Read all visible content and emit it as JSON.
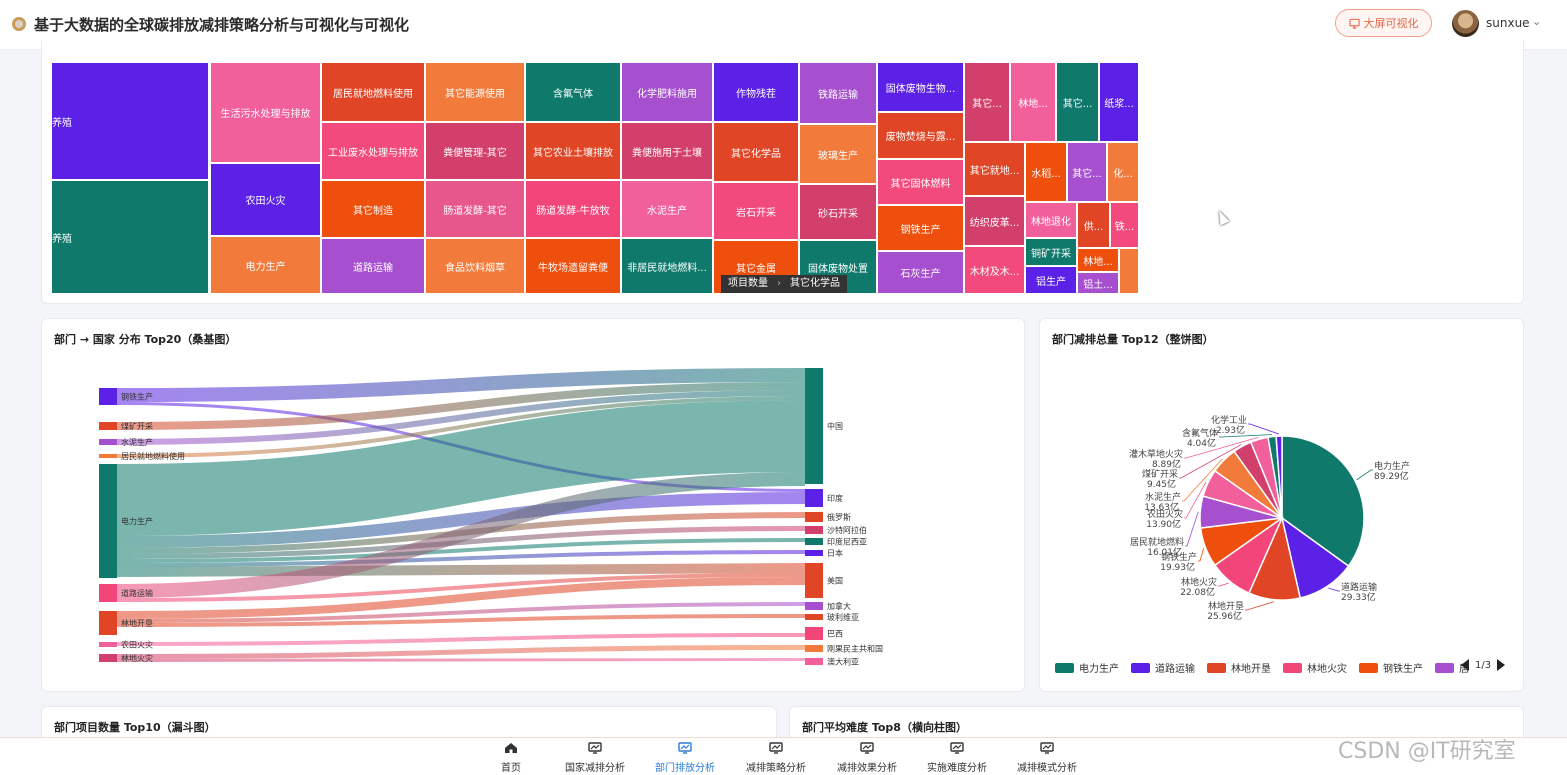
{
  "header": {
    "title": "基于大数据的全球碳排放减排策略分析与可视化与可视化",
    "screen_button": "大屏可视化",
    "username": "sunxue",
    "caret": "⌄"
  },
  "colors": {
    "teal": "#0f7a6c",
    "purple": "#5b21e6",
    "pink": "#f2609c",
    "orange": "#f27b3b",
    "red": "#e04626",
    "magenta": "#d23f6b",
    "violet": "#a64fcf",
    "accent_blue": "#2b7bd6"
  },
  "treemap": {
    "cells": [
      {
        "label": "养殖",
        "color": "#5b21e6"
      },
      {
        "label": "养殖",
        "color": "#0f7a6c"
      },
      {
        "label": "生活污水处理与排放",
        "color": "#f2609c"
      },
      {
        "label": "农田火灾",
        "color": "#5b21e6"
      },
      {
        "label": "电力生产",
        "color": "#f27b3b"
      },
      {
        "label": "居民就地燃料使用",
        "color": "#e04626"
      },
      {
        "label": "工业废水处理与排放",
        "color": "#f24a7c"
      },
      {
        "label": "其它制造",
        "color": "#ee4f0c"
      },
      {
        "label": "道路运输",
        "color": "#a64fcf"
      },
      {
        "label": "其它能源使用",
        "color": "#f27b3b"
      },
      {
        "label": "粪便管理-其它",
        "color": "#d23f6b"
      },
      {
        "label": "肠道发酵-其它",
        "color": "#e7578c"
      },
      {
        "label": "食品饮料烟草",
        "color": "#f27b3b"
      },
      {
        "label": "含氟气体",
        "color": "#0f7a6c"
      },
      {
        "label": "其它农业土壤排放",
        "color": "#e04626"
      },
      {
        "label": "肠道发酵-牛放牧",
        "color": "#f2467a"
      },
      {
        "label": "牛牧场遗留粪便",
        "color": "#ee4f0c"
      },
      {
        "label": "化学肥料施用",
        "color": "#a64fcf"
      },
      {
        "label": "粪便施用于土壤",
        "color": "#d23f6b"
      },
      {
        "label": "水泥生产",
        "color": "#f2609c"
      },
      {
        "label": "非居民就地燃料...",
        "color": "#0f7a6c"
      },
      {
        "label": "作物残茬",
        "color": "#5b21e6"
      },
      {
        "label": "其它化学品",
        "color": "#e04626"
      },
      {
        "label": "岩石开采",
        "color": "#f24a7c"
      },
      {
        "label": "其它金属",
        "color": "#ee4f0c"
      },
      {
        "label": "铁路运输",
        "color": "#a64fcf"
      },
      {
        "label": "玻璃生产",
        "color": "#f27b3b"
      },
      {
        "label": "砂石开采",
        "color": "#d23f6b"
      },
      {
        "label": "固体废物处置",
        "color": "#0f7a6c"
      },
      {
        "label": "固体废物生物...",
        "color": "#5b21e6"
      },
      {
        "label": "废物焚烧与露...",
        "color": "#e04626"
      },
      {
        "label": "其它固体燃料",
        "color": "#f24a7c"
      },
      {
        "label": "钢铁生产",
        "color": "#ee4f0c"
      },
      {
        "label": "石灰生产",
        "color": "#a64fcf"
      },
      {
        "label": "其它...",
        "color": "#d23f6b"
      },
      {
        "label": "林地...",
        "color": "#f2609c"
      },
      {
        "label": "其它...",
        "color": "#0f7a6c"
      },
      {
        "label": "纸浆...",
        "color": "#5b21e6"
      },
      {
        "label": "其它就地...",
        "color": "#e04626"
      },
      {
        "label": "水稻...",
        "color": "#ee4f0c"
      },
      {
        "label": "其它...",
        "color": "#a64fcf"
      },
      {
        "label": "化...",
        "color": "#f27b3b"
      },
      {
        "label": "纺织皮革...",
        "color": "#d23f6b"
      },
      {
        "label": "林地退化",
        "color": "#f2609c"
      },
      {
        "label": "供...",
        "color": "#e04626"
      },
      {
        "label": "铁...",
        "color": "#f24a7c"
      },
      {
        "label": "铜矿开采",
        "color": "#0f7a6c"
      },
      {
        "label": "木材及木...",
        "color": "#f24a7c"
      },
      {
        "label": "林地...",
        "color": "#ee4f0c"
      },
      {
        "label": "铝生产",
        "color": "#5b21e6"
      },
      {
        "label": "铝土...",
        "color": "#a64fcf"
      },
      {
        "label": "",
        "color": "#f27b3b"
      }
    ],
    "breadcrumb": [
      "项目数量",
      "其它化学品"
    ]
  },
  "sankey": {
    "title": "部门 → 国家 分布 Top20（桑基图）",
    "sources": [
      {
        "label": "钢铁生产",
        "color": "#5b21e6"
      },
      {
        "label": "煤矿开采",
        "color": "#e04626"
      },
      {
        "label": "水泥生产",
        "color": "#a64fcf"
      },
      {
        "label": "居民就地燃料使用",
        "color": "#f27b3b"
      },
      {
        "label": "电力生产",
        "color": "#0f7a6c"
      },
      {
        "label": "道路运输",
        "color": "#f2467a"
      },
      {
        "label": "林地开垦",
        "color": "#e04626"
      },
      {
        "label": "农田火灾",
        "color": "#f2609c"
      },
      {
        "label": "林地火灾",
        "color": "#d23f6b"
      }
    ],
    "targets": [
      {
        "label": "中国",
        "color": "#0f7a6c"
      },
      {
        "label": "印度",
        "color": "#5b21e6"
      },
      {
        "label": "俄罗斯",
        "color": "#e04626"
      },
      {
        "label": "沙特阿拉伯",
        "color": "#d23f6b"
      },
      {
        "label": "印度尼西亚",
        "color": "#0f7a6c"
      },
      {
        "label": "日本",
        "color": "#5b21e6"
      },
      {
        "label": "美国",
        "color": "#e04626"
      },
      {
        "label": "加拿大",
        "color": "#a64fcf"
      },
      {
        "label": "玻利维亚",
        "color": "#e04626"
      },
      {
        "label": "巴西",
        "color": "#f2467a"
      },
      {
        "label": "刚果民主共和国",
        "color": "#f27b3b"
      },
      {
        "label": "澳大利亚",
        "color": "#f2609c"
      }
    ]
  },
  "pie": {
    "title": "部门减排总量 Top12（整饼图）",
    "slices": [
      {
        "label": "电力生产",
        "value": 89.29,
        "text": "89.29亿",
        "color": "#0f7a6c"
      },
      {
        "label": "道路运输",
        "value": 29.33,
        "text": "29.33亿",
        "color": "#5b21e6"
      },
      {
        "label": "林地开垦",
        "value": 25.96,
        "text": "25.96亿",
        "color": "#e04626"
      },
      {
        "label": "林地火灾",
        "value": 22.08,
        "text": "22.08亿",
        "color": "#f2467a"
      },
      {
        "label": "钢铁生产",
        "value": 19.93,
        "text": "19.93亿",
        "color": "#ee4f0c"
      },
      {
        "label": "居民就地燃料",
        "value": 16.01,
        "text": "16.01亿",
        "color": "#a64fcf"
      },
      {
        "label": "农田火灾",
        "value": 13.9,
        "text": "13.90亿",
        "color": "#f2609c"
      },
      {
        "label": "水泥生产",
        "value": 13.63,
        "text": "13.63亿",
        "color": "#f27b3b"
      },
      {
        "label": "煤矿开采",
        "value": 9.45,
        "text": "9.45亿",
        "color": "#d23f6b"
      },
      {
        "label": "灌木草地火灾",
        "value": 8.89,
        "text": "8.89亿",
        "color": "#f2609c"
      },
      {
        "label": "含氟气体",
        "value": 4.04,
        "text": "4.04亿",
        "color": "#0f7a6c"
      },
      {
        "label": "化学工业",
        "value": 2.93,
        "text": "2.93亿",
        "color": "#5b21e6"
      }
    ],
    "legend": [
      {
        "label": "电力生产",
        "color": "#0f7a6c"
      },
      {
        "label": "道路运输",
        "color": "#5b21e6"
      },
      {
        "label": "林地开垦",
        "color": "#e04626"
      },
      {
        "label": "林地火灾",
        "color": "#f2467a"
      },
      {
        "label": "钢铁生产",
        "color": "#ee4f0c"
      },
      {
        "label": "居",
        "color": "#a64fcf"
      }
    ],
    "pager": "1/3"
  },
  "funnel": {
    "title": "部门项目数量 Top10（漏斗图）"
  },
  "hbar": {
    "title": "部门平均难度 Top8（横向柱图）"
  },
  "nav": [
    {
      "label": "首页",
      "icon": "home-icon",
      "active": false
    },
    {
      "label": "国家减排分析",
      "icon": "chart-icon",
      "active": false
    },
    {
      "label": "部门排放分析",
      "icon": "chart-icon",
      "active": true
    },
    {
      "label": "减排策略分析",
      "icon": "chart-icon",
      "active": false
    },
    {
      "label": "减排效果分析",
      "icon": "chart-icon",
      "active": false
    },
    {
      "label": "实施难度分析",
      "icon": "chart-icon",
      "active": false
    },
    {
      "label": "减排模式分析",
      "icon": "chart-icon",
      "active": false
    }
  ],
  "watermark": "CSDN @IT研究室"
}
